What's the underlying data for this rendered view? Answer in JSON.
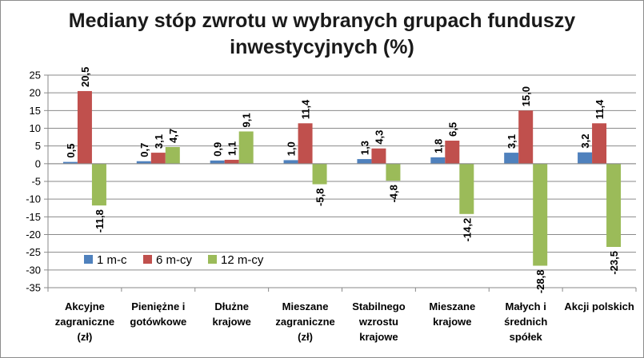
{
  "chart_data": {
    "type": "bar",
    "title_lines": [
      "Mediany stóp zwrotu w wybranych grupach funduszy",
      "inwestycyjnych (%)"
    ],
    "categories": [
      [
        "Akcyjne",
        "zagraniczne",
        "(zł)"
      ],
      [
        "Pieniężne i",
        "gotówkowe"
      ],
      [
        "Dłużne",
        "krajowe"
      ],
      [
        "Mieszane",
        "zagraniczne",
        "(zł)"
      ],
      [
        "Stabilnego",
        "wzrostu",
        "krajowe"
      ],
      [
        "Mieszane",
        "krajowe"
      ],
      [
        "Małych i",
        "średnich",
        "spółek"
      ],
      [
        "Akcji polskich"
      ]
    ],
    "series": [
      {
        "name": "1 m-c",
        "color": "#4f81bd",
        "values": [
          0.5,
          0.7,
          0.9,
          1.0,
          1.3,
          1.8,
          3.1,
          3.2
        ],
        "labels": [
          "0,5",
          "0,7",
          "0,9",
          "1,0",
          "1,3",
          "1,8",
          "3,1",
          "3,2"
        ]
      },
      {
        "name": "6 m-cy",
        "color": "#c0504d",
        "values": [
          20.5,
          3.1,
          1.1,
          11.4,
          4.3,
          6.5,
          15.0,
          11.4
        ],
        "labels": [
          "20,5",
          "3,1",
          "1,1",
          "11,4",
          "4,3",
          "6,5",
          "15,0",
          "11,4"
        ]
      },
      {
        "name": "12 m-cy",
        "color": "#9bbb59",
        "values": [
          -11.8,
          4.7,
          9.1,
          -5.8,
          -4.8,
          -14.2,
          -28.8,
          -23.5
        ],
        "labels": [
          "-11,8",
          "4,7",
          "9,1",
          "-5,8",
          "-4,8",
          "-14,2",
          "-28,8",
          "-23,5"
        ]
      }
    ],
    "ylim": [
      -35,
      25
    ],
    "yticks": [
      25,
      20,
      15,
      10,
      5,
      0,
      -5,
      -10,
      -15,
      -20,
      -25,
      -30,
      -35
    ],
    "ytick_labels": [
      "25",
      "20",
      "15",
      "10",
      "5",
      "0",
      "-5",
      "-10",
      "-15",
      "-20",
      "-25",
      "-30",
      "-35"
    ],
    "grid": true,
    "legend": "lower-left inside plot"
  }
}
